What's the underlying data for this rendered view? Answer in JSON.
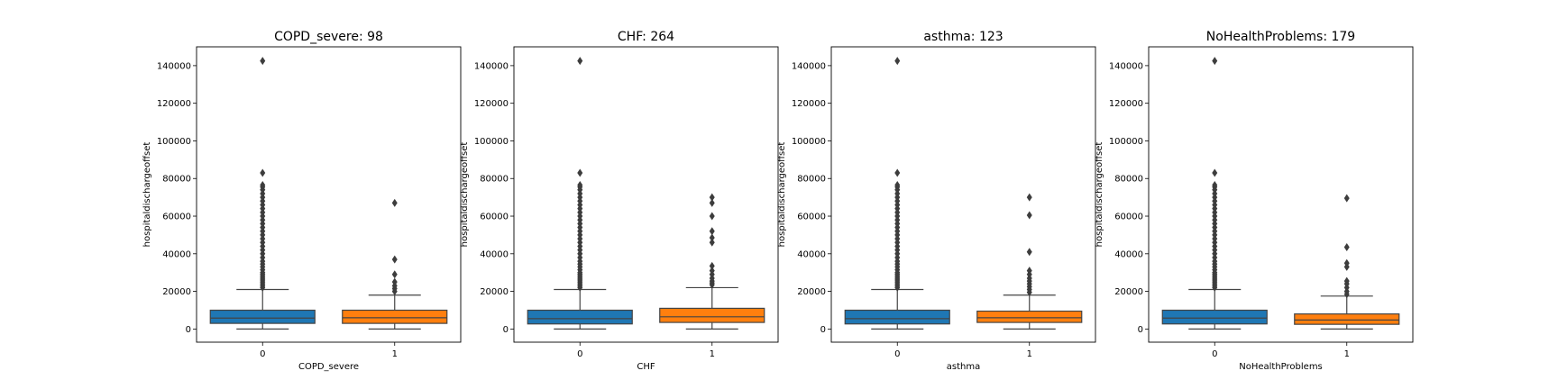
{
  "chart_data": [
    {
      "type": "boxplot",
      "title": "COPD_severe: 98",
      "xlabel": "COPD_severe",
      "ylabel": "hospitaldischargeoffset",
      "ylim": [
        -7000,
        150000
      ],
      "yticks": [
        "0",
        "20000",
        "40000",
        "60000",
        "80000",
        "100000",
        "120000",
        "140000"
      ],
      "categories": [
        "0",
        "1"
      ],
      "boxes": [
        {
          "category": "0",
          "color": "#1f77b4",
          "whisker_low": 0,
          "q1": 3000,
          "median": 5800,
          "q3": 10000,
          "whisker_high": 21000,
          "outliers": [
            22000,
            23000,
            24000,
            25000,
            26000,
            27000,
            28000,
            29000,
            30000,
            31500,
            33000,
            34500,
            36000,
            38000,
            40000,
            42000,
            44000,
            46000,
            48000,
            50000,
            52000,
            54000,
            56000,
            58000,
            60000,
            62000,
            64000,
            66000,
            68000,
            70000,
            72000,
            74000,
            75500,
            76500,
            83000,
            142500
          ]
        },
        {
          "category": "1",
          "color": "#ff7f0e",
          "whisker_low": 0,
          "q1": 3000,
          "median": 6000,
          "q3": 10000,
          "whisker_high": 18000,
          "outliers": [
            20000,
            21500,
            23000,
            25000,
            29000,
            37000,
            67000
          ]
        }
      ]
    },
    {
      "type": "boxplot",
      "title": "CHF: 264",
      "xlabel": "CHF",
      "ylabel": "hospitaldischargeoffset",
      "ylim": [
        -7000,
        150000
      ],
      "yticks": [
        "0",
        "20000",
        "40000",
        "60000",
        "80000",
        "100000",
        "120000",
        "140000"
      ],
      "categories": [
        "0",
        "1"
      ],
      "boxes": [
        {
          "category": "0",
          "color": "#1f77b4",
          "whisker_low": 0,
          "q1": 2700,
          "median": 5500,
          "q3": 10000,
          "whisker_high": 21000,
          "outliers": [
            22000,
            23000,
            24000,
            25000,
            26000,
            27000,
            28000,
            29000,
            30000,
            31500,
            33000,
            34500,
            36000,
            38000,
            40000,
            42000,
            44000,
            46000,
            48000,
            50000,
            52000,
            54000,
            56000,
            58000,
            60000,
            62000,
            64000,
            66000,
            68000,
            70000,
            72000,
            74000,
            75500,
            76500,
            83000,
            142500
          ]
        },
        {
          "category": "1",
          "color": "#ff7f0e",
          "whisker_low": 0,
          "q1": 3500,
          "median": 6500,
          "q3": 11000,
          "whisker_high": 22000,
          "outliers": [
            23500,
            24500,
            25500,
            27000,
            29000,
            31000,
            33500,
            46000,
            48500,
            52000,
            60000,
            67000,
            70000
          ]
        }
      ]
    },
    {
      "type": "boxplot",
      "title": "asthma: 123",
      "xlabel": "asthma",
      "ylabel": "hospitaldischargeoffset",
      "ylim": [
        -7000,
        150000
      ],
      "yticks": [
        "0",
        "20000",
        "40000",
        "60000",
        "80000",
        "100000",
        "120000",
        "140000"
      ],
      "categories": [
        "0",
        "1"
      ],
      "boxes": [
        {
          "category": "0",
          "color": "#1f77b4",
          "whisker_low": 0,
          "q1": 2700,
          "median": 5500,
          "q3": 10000,
          "whisker_high": 21000,
          "outliers": [
            22000,
            23000,
            24000,
            25000,
            26000,
            27000,
            28000,
            29000,
            30000,
            31500,
            33000,
            34500,
            36000,
            38000,
            40000,
            42000,
            44000,
            46000,
            48000,
            50000,
            52000,
            54000,
            56000,
            58000,
            60000,
            62000,
            64000,
            66000,
            68000,
            70000,
            72000,
            74000,
            75500,
            76500,
            83000,
            142500
          ]
        },
        {
          "category": "1",
          "color": "#ff7f0e",
          "whisper_note": "",
          "whisker_low": 0,
          "q1": 3500,
          "median": 6000,
          "q3": 9500,
          "whisker_high": 18000,
          "outliers": [
            19500,
            21000,
            22500,
            24000,
            25500,
            27000,
            29000,
            31000,
            41000,
            60500,
            70000
          ]
        }
      ]
    },
    {
      "type": "boxplot",
      "title": "NoHealthProblems: 179",
      "xlabel": "NoHealthProblems",
      "ylabel": "hospitaldischargeoffset",
      "ylim": [
        -7000,
        150000
      ],
      "yticks": [
        "0",
        "20000",
        "40000",
        "60000",
        "80000",
        "100000",
        "120000",
        "140000"
      ],
      "categories": [
        "0",
        "1"
      ],
      "boxes": [
        {
          "category": "0",
          "color": "#1f77b4",
          "whisker_low": 0,
          "q1": 2700,
          "median": 5800,
          "q3": 10000,
          "whisker_high": 21000,
          "outliers": [
            22000,
            23000,
            24000,
            25000,
            26000,
            27000,
            28000,
            29000,
            30000,
            31500,
            33000,
            34500,
            36000,
            38000,
            40000,
            42000,
            44000,
            46000,
            48000,
            50000,
            52000,
            54000,
            56000,
            58000,
            60000,
            62000,
            64000,
            66000,
            68000,
            70000,
            72000,
            74000,
            75500,
            76500,
            83000,
            142500
          ]
        },
        {
          "category": "1",
          "color": "#ff7f0e",
          "whisker_low": 0,
          "q1": 2500,
          "median": 4800,
          "q3": 8000,
          "whisker_high": 17500,
          "outliers": [
            18500,
            20000,
            22000,
            24000,
            25500,
            33000,
            35000,
            43500,
            69500
          ]
        }
      ]
    }
  ]
}
